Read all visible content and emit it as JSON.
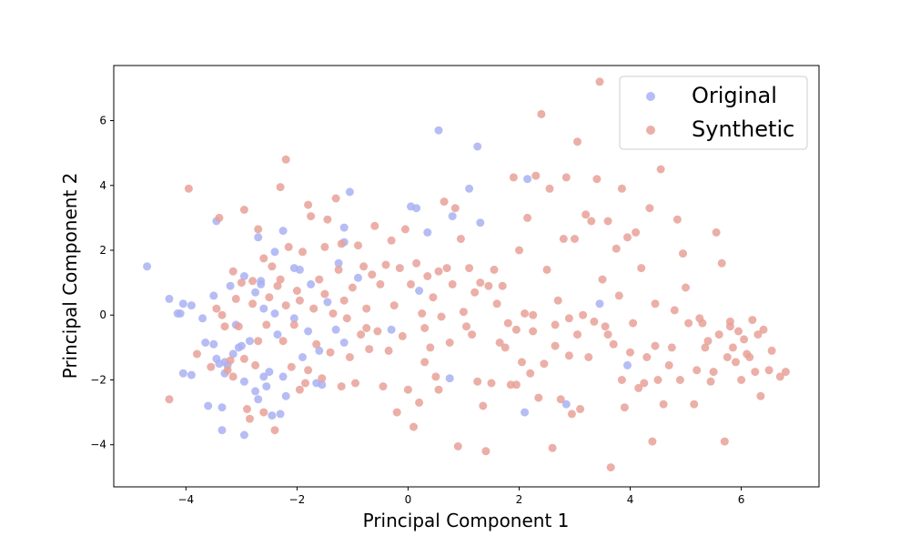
{
  "chart_data": {
    "type": "scatter",
    "title": "",
    "xlabel": "Principal Component 1",
    "ylabel": "Principal Component 2",
    "xlim": [
      -5.3,
      7.4
    ],
    "ylim": [
      -5.3,
      7.7
    ],
    "xticks": [
      -4,
      -2,
      0,
      2,
      4,
      6
    ],
    "yticks": [
      -4,
      -2,
      0,
      2,
      4,
      6
    ],
    "grid": false,
    "legend_position": "top-right",
    "series": [
      {
        "name": "Original",
        "color": "#a9b1f2",
        "points": [
          [
            -4.7,
            1.5
          ],
          [
            -4.3,
            0.5
          ],
          [
            -4.15,
            0.05
          ],
          [
            -4.1,
            0.05
          ],
          [
            -4.05,
            0.35
          ],
          [
            -3.9,
            0.3
          ],
          [
            -4.05,
            -1.8
          ],
          [
            -3.9,
            -1.85
          ],
          [
            -3.7,
            -0.1
          ],
          [
            -3.65,
            -0.85
          ],
          [
            -3.6,
            -2.8
          ],
          [
            -3.5,
            -0.9
          ],
          [
            -3.5,
            0.6
          ],
          [
            -3.45,
            -1.35
          ],
          [
            -3.45,
            2.9
          ],
          [
            -3.35,
            -2.85
          ],
          [
            -3.4,
            -1.5
          ],
          [
            -3.35,
            -3.55
          ],
          [
            -3.3,
            -1.45
          ],
          [
            -3.3,
            -1.8
          ],
          [
            -3.25,
            -1.55
          ],
          [
            -3.2,
            0.9
          ],
          [
            -3.15,
            -1.2
          ],
          [
            -3.1,
            -0.3
          ],
          [
            -3.05,
            -1.0
          ],
          [
            -3.0,
            -0.95
          ],
          [
            -2.95,
            -2.05
          ],
          [
            -2.95,
            1.2
          ],
          [
            -2.95,
            -3.7
          ],
          [
            -2.85,
            -0.8
          ],
          [
            -2.75,
            -2.35
          ],
          [
            -2.75,
            0.7
          ],
          [
            -2.7,
            -2.6
          ],
          [
            -2.7,
            2.4
          ],
          [
            -2.65,
            0.95
          ],
          [
            -2.65,
            1.05
          ],
          [
            -2.6,
            0.2
          ],
          [
            -2.6,
            -1.9
          ],
          [
            -2.55,
            -2.2
          ],
          [
            -2.5,
            -1.75
          ],
          [
            -2.45,
            -3.1
          ],
          [
            -2.4,
            0.05
          ],
          [
            -2.4,
            1.95
          ],
          [
            -2.35,
            -0.6
          ],
          [
            -2.3,
            -3.05
          ],
          [
            -2.25,
            2.6
          ],
          [
            -2.25,
            -1.9
          ],
          [
            -2.2,
            -2.5
          ],
          [
            -2.05,
            1.45
          ],
          [
            -2.05,
            -0.1
          ],
          [
            -1.95,
            1.4
          ],
          [
            -1.9,
            -1.3
          ],
          [
            -1.8,
            -0.5
          ],
          [
            -1.75,
            0.95
          ],
          [
            -1.65,
            -2.1
          ],
          [
            -1.6,
            -1.1
          ],
          [
            -1.55,
            -2.15
          ],
          [
            -1.45,
            0.4
          ],
          [
            -1.3,
            -0.45
          ],
          [
            -1.25,
            1.6
          ],
          [
            -1.15,
            2.25
          ],
          [
            -1.15,
            -0.85
          ],
          [
            -1.15,
            2.7
          ],
          [
            -1.05,
            3.8
          ],
          [
            -0.9,
            1.15
          ],
          [
            -0.3,
            -0.45
          ],
          [
            0.05,
            3.35
          ],
          [
            0.15,
            3.3
          ],
          [
            0.2,
            0.75
          ],
          [
            0.35,
            2.55
          ],
          [
            0.55,
            5.7
          ],
          [
            0.75,
            -1.95
          ],
          [
            0.8,
            3.05
          ],
          [
            1.1,
            3.9
          ],
          [
            1.25,
            5.2
          ],
          [
            1.3,
            2.85
          ],
          [
            2.1,
            -3.0
          ],
          [
            2.15,
            4.2
          ],
          [
            2.85,
            -2.75
          ],
          [
            3.45,
            0.35
          ],
          [
            3.95,
            -1.55
          ]
        ]
      },
      {
        "name": "Synthetic",
        "color": "#e8a198",
        "points": [
          [
            -4.3,
            -2.6
          ],
          [
            -3.95,
            3.9
          ],
          [
            -3.8,
            -1.2
          ],
          [
            -3.55,
            -1.6
          ],
          [
            -3.45,
            0.2
          ],
          [
            -3.4,
            3.0
          ],
          [
            -3.35,
            0.0
          ],
          [
            -3.3,
            -0.35
          ],
          [
            -3.25,
            -1.7
          ],
          [
            -3.2,
            -1.4
          ],
          [
            -3.15,
            -1.9
          ],
          [
            -3.1,
            0.5
          ],
          [
            -3.05,
            -0.35
          ],
          [
            -3.0,
            1.0
          ],
          [
            -2.95,
            -1.35
          ],
          [
            -2.9,
            -2.9
          ],
          [
            -2.85,
            -3.2
          ],
          [
            -2.8,
            1.05
          ],
          [
            -2.75,
            -1.55
          ],
          [
            -2.7,
            2.65
          ],
          [
            -2.7,
            -0.8
          ],
          [
            -2.6,
            -3.0
          ],
          [
            -2.55,
            -0.3
          ],
          [
            -2.5,
            0.55
          ],
          [
            -2.45,
            1.5
          ],
          [
            -2.4,
            -3.55
          ],
          [
            -2.35,
            0.9
          ],
          [
            -2.3,
            1.1
          ],
          [
            -2.25,
            -0.8
          ],
          [
            -2.2,
            0.3
          ],
          [
            -2.15,
            2.1
          ],
          [
            -2.1,
            -1.6
          ],
          [
            -2.05,
            -0.3
          ],
          [
            -2.0,
            0.75
          ],
          [
            -1.95,
            -2.3
          ],
          [
            -1.9,
            1.95
          ],
          [
            -1.85,
            -2.1
          ],
          [
            -1.8,
            -1.7
          ],
          [
            -1.75,
            3.05
          ],
          [
            -1.7,
            0.2
          ],
          [
            -1.65,
            -0.9
          ],
          [
            -1.6,
            1.1
          ],
          [
            -1.55,
            -1.95
          ],
          [
            -1.5,
            0.65
          ],
          [
            -1.45,
            2.95
          ],
          [
            -1.4,
            -1.15
          ],
          [
            -1.35,
            0.05
          ],
          [
            -1.3,
            3.6
          ],
          [
            -1.25,
            1.4
          ],
          [
            -1.2,
            -2.2
          ],
          [
            -1.15,
            0.45
          ],
          [
            -1.1,
            -0.1
          ],
          [
            -1.05,
            -1.3
          ],
          [
            -1.0,
            0.85
          ],
          [
            -0.95,
            -2.1
          ],
          [
            -0.9,
            2.15
          ],
          [
            -0.85,
            -0.6
          ],
          [
            -0.8,
            1.5
          ],
          [
            -0.75,
            0.2
          ],
          [
            -0.7,
            -1.05
          ],
          [
            -0.65,
            1.25
          ],
          [
            -0.6,
            2.75
          ],
          [
            -0.55,
            -0.5
          ],
          [
            -0.5,
            0.95
          ],
          [
            -0.45,
            -2.2
          ],
          [
            -0.4,
            1.55
          ],
          [
            -0.35,
            -1.1
          ],
          [
            -0.3,
            2.3
          ],
          [
            -0.25,
            0.3
          ],
          [
            -0.2,
            -3.0
          ],
          [
            -0.15,
            1.45
          ],
          [
            -0.1,
            -0.65
          ],
          [
            -0.05,
            2.65
          ],
          [
            0.0,
            -2.3
          ],
          [
            0.05,
            0.95
          ],
          [
            0.1,
            -3.45
          ],
          [
            0.15,
            1.6
          ],
          [
            0.2,
            -2.7
          ],
          [
            0.25,
            0.05
          ],
          [
            0.3,
            -0.4
          ],
          [
            0.35,
            1.2
          ],
          [
            0.4,
            -1.0
          ],
          [
            0.45,
            0.55
          ],
          [
            0.5,
            -1.9
          ],
          [
            0.55,
            1.35
          ],
          [
            0.6,
            -0.05
          ],
          [
            0.65,
            3.5
          ],
          [
            0.7,
            1.45
          ],
          [
            0.75,
            -0.85
          ],
          [
            0.8,
            0.95
          ],
          [
            0.85,
            3.3
          ],
          [
            0.9,
            -4.05
          ],
          [
            0.95,
            2.35
          ],
          [
            1.0,
            0.1
          ],
          [
            1.1,
            1.45
          ],
          [
            1.15,
            -0.6
          ],
          [
            1.2,
            0.7
          ],
          [
            1.25,
            -2.05
          ],
          [
            1.3,
            1.0
          ],
          [
            1.35,
            -2.8
          ],
          [
            1.4,
            -4.2
          ],
          [
            1.45,
            0.9
          ],
          [
            1.5,
            -2.1
          ],
          [
            1.55,
            1.4
          ],
          [
            1.6,
            0.35
          ],
          [
            1.65,
            -0.85
          ],
          [
            1.7,
            0.9
          ],
          [
            1.75,
            -1.0
          ],
          [
            1.8,
            -0.25
          ],
          [
            1.85,
            -2.15
          ],
          [
            1.9,
            4.25
          ],
          [
            1.95,
            -0.45
          ],
          [
            2.0,
            2.0
          ],
          [
            2.05,
            -1.45
          ],
          [
            2.1,
            0.05
          ],
          [
            2.15,
            3.0
          ],
          [
            2.2,
            -1.8
          ],
          [
            2.25,
            -0.5
          ],
          [
            2.3,
            4.3
          ],
          [
            2.35,
            -2.55
          ],
          [
            2.4,
            6.2
          ],
          [
            2.45,
            -1.5
          ],
          [
            2.5,
            1.4
          ],
          [
            2.55,
            3.9
          ],
          [
            2.6,
            -4.1
          ],
          [
            2.65,
            -0.95
          ],
          [
            2.7,
            0.45
          ],
          [
            2.75,
            -2.6
          ],
          [
            2.8,
            2.35
          ],
          [
            2.85,
            4.25
          ],
          [
            2.9,
            -0.1
          ],
          [
            2.95,
            -3.05
          ],
          [
            3.0,
            2.35
          ],
          [
            3.05,
            5.35
          ],
          [
            3.1,
            -2.9
          ],
          [
            3.15,
            0.0
          ],
          [
            3.2,
            3.1
          ],
          [
            3.25,
            -1.3
          ],
          [
            3.3,
            2.9
          ],
          [
            3.35,
            -0.2
          ],
          [
            3.4,
            4.2
          ],
          [
            3.45,
            7.2
          ],
          [
            3.5,
            1.1
          ],
          [
            3.55,
            -0.35
          ],
          [
            3.6,
            2.9
          ],
          [
            3.65,
            -4.7
          ],
          [
            3.7,
            -0.9
          ],
          [
            3.75,
            2.05
          ],
          [
            3.8,
            0.6
          ],
          [
            3.85,
            -2.0
          ],
          [
            3.9,
            -2.85
          ],
          [
            3.95,
            2.4
          ],
          [
            4.0,
            -1.15
          ],
          [
            4.05,
            -0.25
          ],
          [
            4.1,
            2.55
          ],
          [
            4.15,
            -2.25
          ],
          [
            4.2,
            1.45
          ],
          [
            4.25,
            -2.1
          ],
          [
            4.3,
            -1.3
          ],
          [
            4.35,
            3.3
          ],
          [
            4.4,
            -3.9
          ],
          [
            4.45,
            0.35
          ],
          [
            4.5,
            -2.0
          ],
          [
            4.55,
            4.5
          ],
          [
            4.6,
            -2.75
          ],
          [
            4.7,
            -1.55
          ],
          [
            4.75,
            -1.0
          ],
          [
            4.8,
            0.15
          ],
          [
            4.85,
            2.95
          ],
          [
            4.9,
            -2.0
          ],
          [
            4.95,
            1.9
          ],
          [
            5.0,
            0.85
          ],
          [
            5.05,
            -0.25
          ],
          [
            5.15,
            -2.75
          ],
          [
            5.2,
            -1.7
          ],
          [
            5.3,
            -0.25
          ],
          [
            5.35,
            -1.0
          ],
          [
            5.4,
            -0.8
          ],
          [
            5.45,
            -2.05
          ],
          [
            5.5,
            -1.75
          ],
          [
            5.55,
            2.55
          ],
          [
            5.6,
            -0.6
          ],
          [
            5.65,
            1.6
          ],
          [
            5.7,
            -3.9
          ],
          [
            5.75,
            -1.3
          ],
          [
            5.8,
            -0.2
          ],
          [
            5.85,
            -1.0
          ],
          [
            5.9,
            -1.45
          ],
          [
            5.95,
            -0.5
          ],
          [
            6.0,
            -2.0
          ],
          [
            6.05,
            -0.75
          ],
          [
            6.1,
            -1.2
          ],
          [
            6.2,
            -0.15
          ],
          [
            6.25,
            -1.75
          ],
          [
            6.3,
            -0.6
          ],
          [
            6.35,
            -2.5
          ],
          [
            6.4,
            -0.45
          ],
          [
            6.5,
            -1.7
          ],
          [
            6.55,
            -1.1
          ],
          [
            6.7,
            -1.9
          ],
          [
            6.8,
            -1.75
          ],
          [
            -2.2,
            4.8
          ],
          [
            -2.3,
            3.95
          ],
          [
            -1.8,
            3.4
          ],
          [
            -1.5,
            2.1
          ],
          [
            -1.95,
            0.45
          ],
          [
            -2.6,
            1.75
          ],
          [
            -2.8,
            0.35
          ],
          [
            -3.15,
            1.35
          ],
          [
            -2.95,
            3.25
          ],
          [
            -1.2,
            2.2
          ],
          [
            -0.75,
            -0.4
          ],
          [
            0.3,
            -1.45
          ],
          [
            0.55,
            -2.3
          ],
          [
            1.05,
            -0.35
          ],
          [
            1.95,
            -2.15
          ],
          [
            2.25,
            0.0
          ],
          [
            2.65,
            -0.3
          ],
          [
            2.9,
            -1.25
          ],
          [
            3.05,
            -0.6
          ],
          [
            3.6,
            -0.6
          ],
          [
            3.85,
            3.9
          ],
          [
            4.45,
            -0.95
          ],
          [
            5.25,
            -0.1
          ],
          [
            5.8,
            -0.35
          ],
          [
            6.15,
            -1.3
          ]
        ]
      }
    ]
  }
}
